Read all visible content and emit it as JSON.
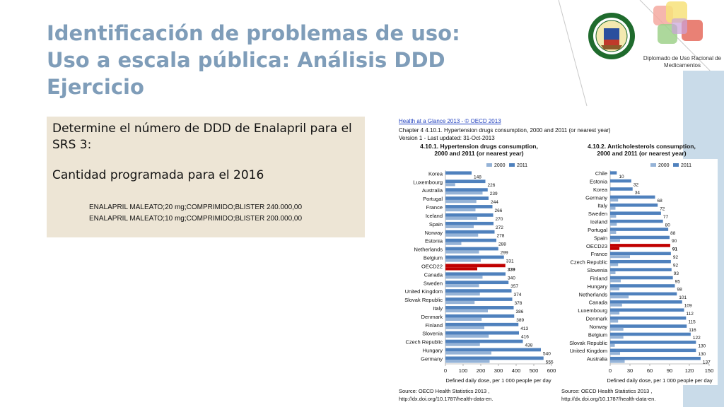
{
  "slide": {
    "title_lines": [
      "Identificación de problemas de uso:",
      "Uso a escala pública: Análisis DDD",
      "Ejercicio"
    ],
    "logo_caption": "Diplomado de Uso Racional de Medicamentos",
    "task": {
      "question": "Determine el número de DDD de Enalapril para el SRS 3:",
      "subheading": "Cantidad programada para el 2016",
      "lines": [
        "ENALAPRIL MALEATO;20 mg;COMPRIMIDO;BLISTER  240.000,00",
        "ENALAPRIL MALEATO;10 mg;COMPRIMIDO;BLISTER  200.000,00"
      ]
    },
    "figure_header": {
      "link": "Health at a Glance 2013 - © OECD 2013",
      "chapter": "Chapter 4      4.10.1. Hypertension drugs consumption, 2000 and 2011 (or nearest year)",
      "version": "Version 1 - Last updated: 31-Oct-2013"
    },
    "colors": {
      "title": "#7f9db9",
      "bar_2011": "#4f81bd",
      "bar_2000": "#95b3d7",
      "highlight": "#c00000",
      "task_bg": "#ede5d5",
      "band": "#c9dbe9"
    }
  },
  "chart_data": [
    {
      "type": "bar",
      "orientation": "horizontal",
      "title_lines": [
        "4.10.1. Hypertension drugs consumption,",
        "2000 and 2011 (or nearest year)"
      ],
      "title_bold_part": "Hypertension drugs consumption,",
      "legend": [
        "2000",
        "2011"
      ],
      "xlabel": "Defined daily dose, per 1 000 people per day",
      "xlim": [
        0,
        600
      ],
      "xticks": [
        "0",
        "100",
        "200",
        "300",
        "400",
        "500",
        "600"
      ],
      "highlight_category": "OECD22",
      "categories": [
        "Korea",
        "Luxembourg",
        "Australia",
        "Portugal",
        "France",
        "Iceland",
        "Spain",
        "Norway",
        "Estonia",
        "Netherlands",
        "Belgium",
        "OECD22",
        "Canada",
        "Sweden",
        "United Kingdom",
        "Slovak Republic",
        "Italy",
        "Denmark",
        "Finland",
        "Slovenia",
        "Czech Republic",
        "Hungary",
        "Germany"
      ],
      "series": [
        {
          "name": "2000",
          "values": [
            null,
            55,
            210,
            175,
            170,
            180,
            160,
            185,
            90,
            190,
            200,
            180,
            210,
            190,
            195,
            165,
            240,
            205,
            220,
            245,
            195,
            260,
            250
          ]
        },
        {
          "name": "2011",
          "values": [
            148,
            226,
            239,
            244,
            266,
            270,
            272,
            278,
            288,
            299,
            331,
            339,
            340,
            357,
            374,
            378,
            386,
            389,
            413,
            416,
            438,
            540,
            555
          ]
        }
      ],
      "data_labels": [
        "148",
        "226",
        "239",
        "244",
        "266",
        "270",
        "272",
        "278",
        "288",
        "299",
        "331",
        "339",
        "340",
        "357",
        "374",
        "378",
        "386",
        "389",
        "413",
        "416",
        "438",
        "540",
        "555"
      ],
      "source_lines": [
        "Source: OECD Health Statistics 2013 ,",
        "http://dx.doi.org/10.1787/health-data-en."
      ]
    },
    {
      "type": "bar",
      "orientation": "horizontal",
      "title_lines": [
        "4.10.2. Anticholesterols consumption,",
        "2000 and 2011 (or nearest year)"
      ],
      "title_bold_part": "Anticholesterols consumption,",
      "legend": [
        "2000",
        "2011"
      ],
      "xlabel": "Defined daily dose, per 1 000 people per day",
      "xlim": [
        0,
        150
      ],
      "xticks": [
        "0",
        "30",
        "60",
        "90",
        "120",
        "150"
      ],
      "highlight_category": "OECD23",
      "categories": [
        "Chile",
        "Estonia",
        "Korea",
        "Germany",
        "Italy",
        "Sweden",
        "Iceland",
        "Portugal",
        "Spain",
        "OECD23",
        "France",
        "Czech Republic",
        "Slovenia",
        "Finland",
        "Hungary",
        "Netherlands",
        "Canada",
        "Luxembourg",
        "Denmark",
        "Norway",
        "Belgium",
        "Slovak Republic",
        "United Kingdom",
        "Australia"
      ],
      "series": [
        {
          "name": "2000",
          "values": [
            null,
            null,
            null,
            12,
            8,
            9,
            10,
            9,
            15,
            14,
            30,
            12,
            8,
            16,
            14,
            28,
            18,
            14,
            12,
            20,
            20,
            7,
            15,
            22
          ]
        },
        {
          "name": "2011",
          "values": [
            10,
            32,
            34,
            68,
            72,
            77,
            80,
            88,
            90,
            91,
            92,
            92,
            93,
            95,
            98,
            101,
            109,
            112,
            115,
            116,
            122,
            130,
            130,
            137
          ]
        }
      ],
      "data_labels": [
        "10",
        "32",
        "34",
        "68",
        "72",
        "77",
        "80",
        "88",
        "90",
        "91",
        "92",
        "92",
        "93",
        "95",
        "98",
        "101",
        "109",
        "112",
        "115",
        "116",
        "122",
        "130",
        "130",
        "137"
      ],
      "source_lines": [
        "Source: OECD Health Statistics 2013 ,",
        "http://dx.doi.org/10.1787/health-data-en."
      ]
    }
  ]
}
